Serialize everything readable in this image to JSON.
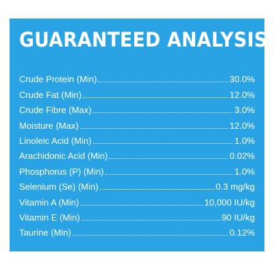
{
  "panel": {
    "title": "GUARANTEED ANALYSIS",
    "background_color": "#29a3e3",
    "text_color": "#ffffff"
  },
  "analysis": [
    {
      "label": "Crude Protein (Min)",
      "value": "30.0%"
    },
    {
      "label": "Crude Fat (Min)",
      "value": "12.0%"
    },
    {
      "label": "Crude Fibre (Max)",
      "value": "3.0%"
    },
    {
      "label": "Moisture (Max)",
      "value": "12.0%"
    },
    {
      "label": "Linoleic Acid (Min)",
      "value": "1.0%"
    },
    {
      "label": "Arachidonic Acid (Min)",
      "value": "0.02%"
    },
    {
      "label": "Phosphorus (P) (Min)",
      "value": "1.0%"
    },
    {
      "label": "Selenium (Se) (Min)",
      "value": "0.3 mg/kg"
    },
    {
      "label": "Vitamin A (Min)",
      "value": "10,000 IU/kg"
    },
    {
      "label": "Vitamin E (Min)",
      "value": "90 IU/kg"
    },
    {
      "label": "Taurine (Min)",
      "value": "0.12%"
    }
  ]
}
